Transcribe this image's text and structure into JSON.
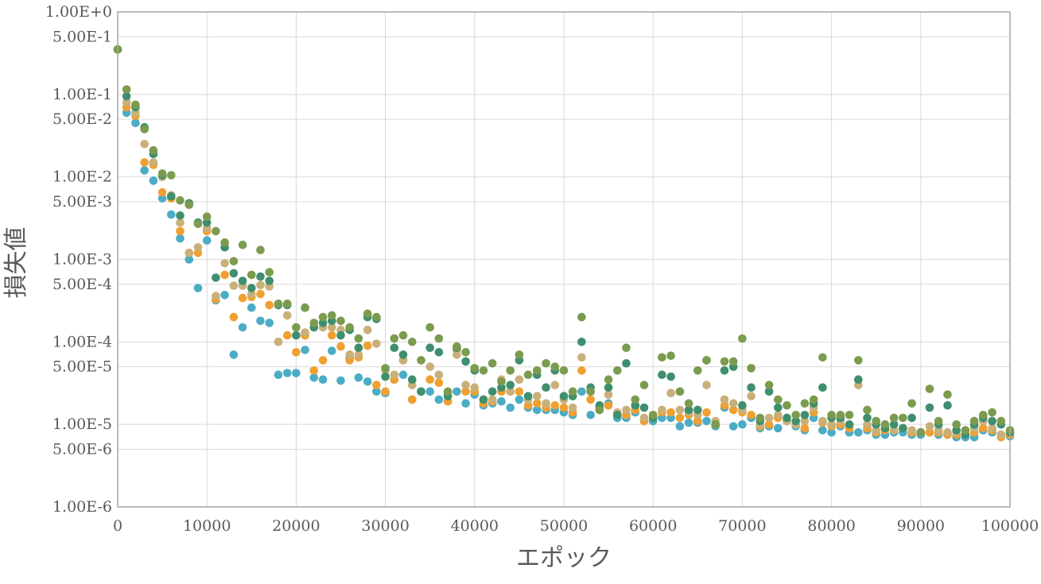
{
  "chart_data": {
    "type": "scatter",
    "title": "",
    "xlabel": "エポック",
    "ylabel": "損失値",
    "x_scale": "linear",
    "y_scale": "log",
    "xlim": [
      0,
      100000
    ],
    "ylim": [
      1e-06,
      1
    ],
    "grid": true,
    "legend": "none",
    "x_ticks": [
      "0",
      "10000",
      "20000",
      "30000",
      "40000",
      "50000",
      "60000",
      "70000",
      "80000",
      "90000",
      "100000"
    ],
    "y_ticks": [
      {
        "value": 1,
        "label": "1.00E+0"
      },
      {
        "value": 0.5,
        "label": "5.00E-1"
      },
      {
        "value": 0.1,
        "label": "1.00E-1"
      },
      {
        "value": 0.05,
        "label": "5.00E-2"
      },
      {
        "value": 0.01,
        "label": "1.00E-2"
      },
      {
        "value": 0.005,
        "label": "5.00E-3"
      },
      {
        "value": 0.001,
        "label": "1.00E-3"
      },
      {
        "value": 0.0005,
        "label": "5.00E-4"
      },
      {
        "value": 0.0001,
        "label": "1.00E-4"
      },
      {
        "value": 5e-05,
        "label": "5.00E-5"
      },
      {
        "value": 1e-05,
        "label": "1.00E-5"
      },
      {
        "value": 5e-06,
        "label": "5.00E-6"
      },
      {
        "value": 1e-06,
        "label": "1.00E-6"
      }
    ],
    "series": [
      {
        "color": "#4bacc6",
        "x": [
          0,
          1000,
          2000,
          3000,
          4000,
          5000,
          6000,
          7000,
          8000,
          9000,
          10000,
          11000,
          12000,
          13000,
          14000,
          15000,
          16000,
          17000,
          18000,
          19000,
          20000,
          21000,
          22000,
          23000,
          24000,
          25000,
          26000,
          27000,
          28000,
          29000,
          30000,
          31000,
          32000,
          33000,
          34000,
          35000,
          36000,
          37000,
          38000,
          39000,
          40000,
          41000,
          42000,
          43000,
          44000,
          45000,
          46000,
          47000,
          48000,
          49000,
          50000,
          51000,
          52000,
          53000,
          54000,
          55000,
          56000,
          57000,
          58000,
          59000,
          60000,
          61000,
          62000,
          63000,
          64000,
          65000,
          66000,
          67000,
          68000,
          69000,
          70000,
          71000,
          72000,
          73000,
          74000,
          75000,
          76000,
          77000,
          78000,
          79000,
          80000,
          81000,
          82000,
          83000,
          84000,
          85000,
          86000,
          87000,
          88000,
          89000,
          90000,
          91000,
          92000,
          93000,
          94000,
          95000,
          96000,
          97000,
          98000,
          99000,
          100000
        ],
        "y": [
          0.35,
          0.06,
          0.045,
          0.012,
          0.009,
          0.0055,
          0.0035,
          0.0018,
          0.001,
          0.00045,
          0.0017,
          0.00032,
          0.00037,
          7e-05,
          0.00015,
          0.00026,
          0.00018,
          0.00017,
          4e-05,
          4.2e-05,
          4.2e-05,
          8e-05,
          3.7e-05,
          3.5e-05,
          7.8e-05,
          3.4e-05,
          6.4e-05,
          3.7e-05,
          3.3e-05,
          2.5e-05,
          2.4e-05,
          3.5e-05,
          4e-05,
          2e-05,
          2.5e-05,
          2.5e-05,
          2e-05,
          1.9e-05,
          2.5e-05,
          1.8e-05,
          2.3e-05,
          1.7e-05,
          1.8e-05,
          1.9e-05,
          1.6e-05,
          2e-05,
          1.6e-05,
          1.5e-05,
          1.5e-05,
          1.5e-05,
          1.4e-05,
          1.3e-05,
          2.5e-05,
          1.3e-05,
          1.5e-05,
          1.8e-05,
          1.2e-05,
          1.2e-05,
          1.4e-05,
          1.1e-05,
          1.1e-05,
          1.2e-05,
          1.2e-05,
          9.5e-06,
          1.05e-05,
          1.05e-05,
          1.1e-05,
          9.5e-06,
          1.6e-05,
          9.5e-06,
          1e-05,
          1.2e-05,
          9e-06,
          9.5e-06,
          9e-06,
          1.1e-05,
          9.5e-06,
          8.5e-06,
          1.2e-05,
          8.5e-06,
          8e-06,
          9.5e-06,
          8e-06,
          8e-06,
          8.5e-06,
          7.5e-06,
          7.5e-06,
          8e-06,
          8e-06,
          7.5e-06,
          7.5e-06,
          8e-06,
          7.5e-06,
          7.5e-06,
          7e-06,
          7e-06,
          7e-06,
          8.5e-06,
          8e-06,
          7.5e-06,
          7.2e-06
        ]
      },
      {
        "color": "#f0a030",
        "x": [
          0,
          1000,
          2000,
          3000,
          4000,
          5000,
          6000,
          7000,
          8000,
          9000,
          10000,
          11000,
          12000,
          13000,
          14000,
          15000,
          16000,
          17000,
          18000,
          19000,
          20000,
          21000,
          22000,
          23000,
          24000,
          25000,
          26000,
          27000,
          28000,
          29000,
          30000,
          31000,
          32000,
          33000,
          34000,
          35000,
          36000,
          37000,
          38000,
          39000,
          40000,
          41000,
          42000,
          43000,
          44000,
          45000,
          46000,
          47000,
          48000,
          49000,
          50000,
          51000,
          52000,
          53000,
          54000,
          55000,
          56000,
          57000,
          58000,
          59000,
          60000,
          61000,
          62000,
          63000,
          64000,
          65000,
          66000,
          67000,
          68000,
          69000,
          70000,
          71000,
          72000,
          73000,
          74000,
          75000,
          76000,
          77000,
          78000,
          79000,
          80000,
          81000,
          82000,
          83000,
          84000,
          85000,
          86000,
          87000,
          88000,
          89000,
          90000,
          91000,
          92000,
          93000,
          94000,
          95000,
          96000,
          97000,
          98000,
          99000,
          100000
        ],
        "y": [
          0.35,
          0.07,
          0.055,
          0.015,
          0.014,
          0.0065,
          0.0055,
          0.0022,
          0.0012,
          0.0012,
          0.0022,
          0.00033,
          0.00065,
          0.0002,
          0.00034,
          0.00035,
          0.00038,
          0.00028,
          0.0001,
          0.00012,
          7.5e-05,
          0.00012,
          4.5e-05,
          6e-05,
          0.00012,
          8.8e-05,
          6e-05,
          6.5e-05,
          9e-05,
          3e-05,
          2.5e-05,
          3.5e-05,
          6e-05,
          2e-05,
          2.5e-05,
          3.5e-05,
          3.2e-05,
          1.9e-05,
          8e-05,
          2.5e-05,
          2.5e-05,
          1.8e-05,
          1.9e-05,
          2.5e-05,
          2.5e-05,
          2.5e-05,
          1.7e-05,
          1.8e-05,
          1.6e-05,
          1.7e-05,
          1.6e-05,
          1.4e-05,
          4.5e-05,
          2e-05,
          1.6e-05,
          1.7e-05,
          1.3e-05,
          1.3e-05,
          1.5e-05,
          1.1e-05,
          1.2e-05,
          1.4e-05,
          1.4e-05,
          1.2e-05,
          1.3e-05,
          1.1e-05,
          1.4e-05,
          1e-05,
          1.7e-05,
          1.5e-05,
          1.4e-05,
          1.3e-05,
          9.5e-06,
          1e-05,
          1.2e-05,
          1.1e-05,
          1e-05,
          9e-06,
          1.4e-05,
          1.05e-05,
          9.5e-06,
          1e-05,
          9e-06,
          3.5e-05,
          9e-06,
          8e-06,
          8.5e-06,
          8.5e-06,
          9e-06,
          8e-06,
          8e-06,
          8e-06,
          8e-06,
          7.5e-06,
          7.5e-06,
          7.5e-06,
          8e-06,
          9e-06,
          8.5e-06,
          7e-06,
          7.5e-06
        ]
      },
      {
        "color": "#c9b07a",
        "x": [
          0,
          1000,
          2000,
          3000,
          4000,
          5000,
          6000,
          7000,
          8000,
          9000,
          10000,
          11000,
          12000,
          13000,
          14000,
          15000,
          16000,
          17000,
          18000,
          19000,
          20000,
          21000,
          22000,
          23000,
          24000,
          25000,
          26000,
          27000,
          28000,
          29000,
          30000,
          31000,
          32000,
          33000,
          34000,
          35000,
          36000,
          37000,
          38000,
          39000,
          40000,
          41000,
          42000,
          43000,
          44000,
          45000,
          46000,
          47000,
          48000,
          49000,
          50000,
          51000,
          52000,
          53000,
          54000,
          55000,
          56000,
          57000,
          58000,
          59000,
          60000,
          61000,
          62000,
          63000,
          64000,
          65000,
          66000,
          67000,
          68000,
          69000,
          70000,
          71000,
          72000,
          73000,
          74000,
          75000,
          76000,
          77000,
          78000,
          79000,
          80000,
          81000,
          82000,
          83000,
          84000,
          85000,
          86000,
          87000,
          88000,
          89000,
          90000,
          91000,
          92000,
          93000,
          94000,
          95000,
          96000,
          97000,
          98000,
          99000,
          100000
        ],
        "y": [
          0.35,
          0.08,
          0.06,
          0.025,
          0.015,
          0.01,
          0.006,
          0.0028,
          0.0012,
          0.0014,
          0.0024,
          0.00036,
          0.0009,
          0.00048,
          0.00048,
          0.00038,
          0.00049,
          0.00047,
          0.0001,
          0.00021,
          0.00012,
          0.00013,
          0.00015,
          0.00015,
          0.00015,
          0.00014,
          7e-05,
          7e-05,
          0.00014,
          9.5e-05,
          4.5e-05,
          4e-05,
          6e-05,
          3e-05,
          2.5e-05,
          5e-05,
          4e-05,
          2.4e-05,
          7e-05,
          3e-05,
          2.8e-05,
          2e-05,
          2e-05,
          3.5e-05,
          2.5e-05,
          3.5e-05,
          2e-05,
          2.2e-05,
          1.8e-05,
          3e-05,
          2e-05,
          1.6e-05,
          6.5e-05,
          2.5e-05,
          1.5e-05,
          2.3e-05,
          1.4e-05,
          1.5e-05,
          1.7e-05,
          1.2e-05,
          1.3e-05,
          1.5e-05,
          2.4e-05,
          1.5e-05,
          1.4e-05,
          1.3e-05,
          3e-05,
          1.1e-05,
          2e-05,
          1.8e-05,
          1.5e-05,
          2.2e-05,
          1e-05,
          1.2e-05,
          1.3e-05,
          1.1e-05,
          1e-05,
          1.1e-05,
          1.6e-05,
          1.1e-05,
          1e-05,
          1.1e-05,
          1e-05,
          3e-05,
          1e-05,
          8.5e-06,
          9e-06,
          8.5e-06,
          9e-06,
          8.5e-06,
          8e-06,
          9.5e-06,
          8.5e-06,
          8e-06,
          8e-06,
          7.5e-06,
          9e-06,
          1.1e-05,
          9e-06,
          7.5e-06,
          8e-06
        ]
      },
      {
        "color": "#3f8f6e",
        "x": [
          0,
          1000,
          2000,
          3000,
          4000,
          5000,
          6000,
          7000,
          8000,
          9000,
          10000,
          11000,
          12000,
          13000,
          14000,
          15000,
          16000,
          17000,
          18000,
          19000,
          20000,
          21000,
          22000,
          23000,
          24000,
          25000,
          26000,
          27000,
          28000,
          29000,
          30000,
          31000,
          32000,
          33000,
          34000,
          35000,
          36000,
          37000,
          38000,
          39000,
          40000,
          41000,
          42000,
          43000,
          44000,
          45000,
          46000,
          47000,
          48000,
          49000,
          50000,
          51000,
          52000,
          53000,
          54000,
          55000,
          56000,
          57000,
          58000,
          59000,
          60000,
          61000,
          62000,
          63000,
          64000,
          65000,
          66000,
          67000,
          68000,
          69000,
          70000,
          71000,
          72000,
          73000,
          74000,
          75000,
          76000,
          77000,
          78000,
          79000,
          80000,
          81000,
          82000,
          83000,
          84000,
          85000,
          86000,
          87000,
          88000,
          89000,
          90000,
          91000,
          92000,
          93000,
          94000,
          95000,
          96000,
          97000,
          98000,
          99000,
          100000
        ],
        "y": [
          0.35,
          0.095,
          0.07,
          0.04,
          0.019,
          0.0105,
          0.0058,
          0.0034,
          0.0048,
          0.0028,
          0.0028,
          0.0006,
          0.0014,
          0.00068,
          0.00055,
          0.00045,
          0.00062,
          0.00055,
          0.00028,
          0.00028,
          0.00012,
          0.00026,
          0.00015,
          0.00017,
          0.00018,
          0.00012,
          0.00014,
          8.5e-05,
          0.0002,
          0.00019,
          3.8e-05,
          8.5e-05,
          7e-05,
          3.5e-05,
          2.5e-05,
          8.5e-05,
          7.5e-05,
          2.2e-05,
          8.5e-05,
          5.8e-05,
          4.5e-05,
          2e-05,
          2.5e-05,
          2.8e-05,
          3e-05,
          6e-05,
          2.2e-05,
          4e-05,
          2.8e-05,
          4.5e-05,
          2.2e-05,
          2.2e-05,
          0.0001,
          2.8e-05,
          1.7e-05,
          2.8e-05,
          1.3e-05,
          5.5e-05,
          1.7e-05,
          1.6e-05,
          1.2e-05,
          4e-05,
          3.8e-05,
          2.5e-05,
          1.5e-05,
          1.5e-05,
          6e-05,
          1e-05,
          4.5e-05,
          5e-05,
          1.7e-05,
          2.8e-05,
          1.1e-05,
          2.5e-05,
          1.6e-05,
          1.2e-05,
          1.1e-05,
          1.3e-05,
          1.8e-05,
          2.8e-05,
          1.2e-05,
          1.2e-05,
          1e-05,
          3.5e-05,
          1.2e-05,
          1e-05,
          9e-06,
          1e-05,
          9e-06,
          1.2e-05,
          8e-06,
          1.6e-05,
          1e-05,
          1.7e-05,
          8.5e-06,
          7.5e-06,
          1e-05,
          1.2e-05,
          1.1e-05,
          1e-05,
          8e-06
        ]
      },
      {
        "color": "#7b9b4f",
        "x": [
          0,
          1000,
          2000,
          3000,
          4000,
          5000,
          6000,
          7000,
          8000,
          9000,
          10000,
          11000,
          12000,
          13000,
          14000,
          15000,
          16000,
          17000,
          18000,
          19000,
          20000,
          21000,
          22000,
          23000,
          24000,
          25000,
          26000,
          27000,
          28000,
          29000,
          30000,
          31000,
          32000,
          33000,
          34000,
          35000,
          36000,
          37000,
          38000,
          39000,
          40000,
          41000,
          42000,
          43000,
          44000,
          45000,
          46000,
          47000,
          48000,
          49000,
          50000,
          51000,
          52000,
          53000,
          54000,
          55000,
          56000,
          57000,
          58000,
          59000,
          60000,
          61000,
          62000,
          63000,
          64000,
          65000,
          66000,
          67000,
          68000,
          69000,
          70000,
          71000,
          72000,
          73000,
          74000,
          75000,
          76000,
          77000,
          78000,
          79000,
          80000,
          81000,
          82000,
          83000,
          84000,
          85000,
          86000,
          87000,
          88000,
          89000,
          90000,
          91000,
          92000,
          93000,
          94000,
          95000,
          96000,
          97000,
          98000,
          99000,
          100000
        ],
        "y": [
          0.35,
          0.115,
          0.075,
          0.038,
          0.021,
          0.011,
          0.0105,
          0.0052,
          0.0046,
          0.0027,
          0.0033,
          0.0022,
          0.0016,
          0.00095,
          0.0015,
          0.00065,
          0.0013,
          0.0007,
          0.00029,
          0.00029,
          0.00015,
          0.00026,
          0.00017,
          0.0002,
          0.00021,
          0.00018,
          0.00015,
          0.00011,
          0.00022,
          0.0002,
          4.8e-05,
          0.00011,
          0.00012,
          0.0001,
          6e-05,
          0.00015,
          0.00011,
          2.5e-05,
          8.8e-05,
          7.5e-05,
          4.8e-05,
          4.5e-05,
          5.5e-05,
          3.3e-05,
          4.5e-05,
          7e-05,
          4e-05,
          4.5e-05,
          5.5e-05,
          5e-05,
          4.5e-05,
          2.5e-05,
          0.0002,
          2.5e-05,
          1.5e-05,
          3.5e-05,
          4.5e-05,
          8.5e-05,
          2e-05,
          3e-05,
          1.3e-05,
          6.5e-05,
          6.8e-05,
          2.5e-05,
          1.8e-05,
          4.5e-05,
          6e-05,
          1e-05,
          5.8e-05,
          5.8e-05,
          0.00011,
          4.8e-05,
          1.2e-05,
          3e-05,
          2e-05,
          1.7e-05,
          1.3e-05,
          1.8e-05,
          2e-05,
          6.5e-05,
          1.3e-05,
          1.3e-05,
          1.3e-05,
          6e-05,
          1.5e-05,
          1.1e-05,
          1e-05,
          1.2e-05,
          1.2e-05,
          1.8e-05,
          8e-06,
          2.7e-05,
          1.1e-05,
          2.3e-05,
          1e-05,
          8.5e-06,
          1.1e-05,
          1.3e-05,
          1.4e-05,
          1.1e-05,
          8.5e-06
        ]
      }
    ]
  }
}
